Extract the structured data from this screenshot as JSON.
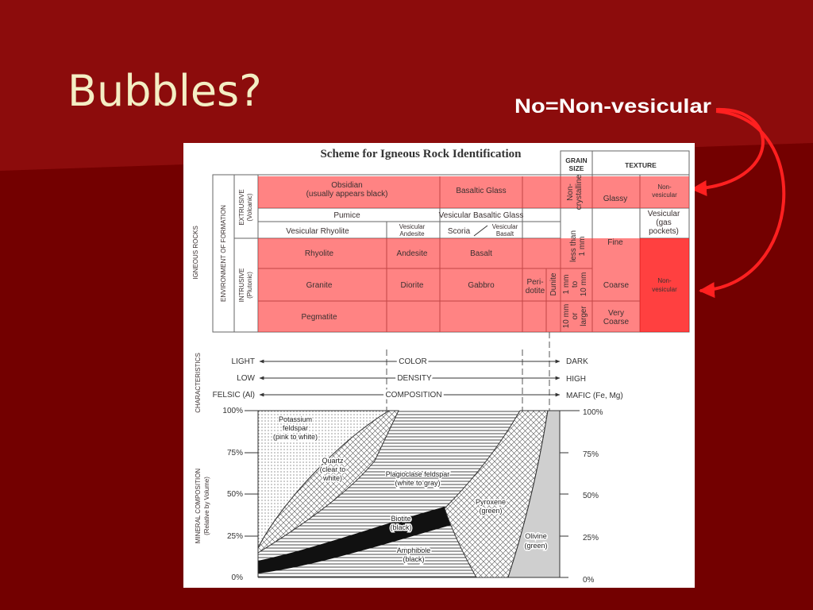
{
  "slide": {
    "title": "Bubbles?",
    "note": "No=Non-vesicular"
  },
  "scheme": {
    "title": "Scheme for Igneous Rock Identification",
    "header": {
      "grain_size": [
        "GRAIN",
        "SIZE"
      ],
      "texture": "TEXTURE"
    },
    "side": {
      "igneous_rocks": "IGNEOUS ROCKS",
      "environment": "ENVIRONMENT OF FORMATION",
      "extrusive": [
        "EXTRUSIVE",
        "(Volcanic)"
      ],
      "intrusive": [
        "INTRUSIVE",
        "(Plutonic)"
      ]
    },
    "extrusive": {
      "obsidian": [
        "Obsidian",
        "(usually appears black)"
      ],
      "basaltic_glass": "Basaltic Glass",
      "pumice": "Pumice",
      "vesicular_basaltic_glass": "Vesicular Basaltic Glass",
      "vesicular_rhyolite": "Vesicular Rhyolite",
      "vesicular_andesite": [
        "Vesicular",
        "Andesite"
      ],
      "scoria": "Scoria",
      "vesicular_basalt": [
        "Vesicular",
        "Basalt"
      ],
      "rhyolite": "Rhyolite",
      "andesite": "Andesite",
      "basalt": "Basalt"
    },
    "intrusive": {
      "granite": "Granite",
      "diorite": "Diorite",
      "gabbro": "Gabbro",
      "peridotite": [
        "Peri-",
        "dotite"
      ],
      "dunite": "Dunite",
      "pegmatite": "Pegmatite"
    },
    "grain_size": {
      "non_crystalline": [
        "Non-",
        "crystalline"
      ],
      "fine": [
        "less than",
        "1 mm"
      ],
      "coarse": [
        "1 mm",
        "to",
        "10 mm"
      ],
      "very_coarse": [
        "10 mm",
        "or",
        "larger"
      ]
    },
    "texture": {
      "glassy": "Glassy",
      "glassy_vesicularity": [
        "Non-",
        "vesicular"
      ],
      "vesicular": [
        "Vesicular",
        "(gas",
        "pockets)"
      ],
      "fine": "Fine",
      "coarse": "Coarse",
      "very_coarse": [
        "Very",
        "Coarse"
      ],
      "crystalline_vesicularity": [
        "Non-",
        "vesicular"
      ]
    },
    "characteristics": {
      "label": "CHARACTERISTICS",
      "rows": [
        [
          "LIGHT",
          "COLOR",
          "DARK"
        ],
        [
          "LOW",
          "DENSITY",
          "HIGH"
        ],
        [
          "FELSIC (Al)",
          "COMPOSITION",
          "MAFIC (Fe, Mg)"
        ]
      ]
    },
    "mineral_composition": {
      "label": [
        "MINERAL COMPOSITION",
        "(Relative by Volume)"
      ],
      "scale": [
        "100%",
        "75%",
        "50%",
        "25%",
        "0%"
      ],
      "minerals": {
        "potassium_feldspar": [
          "Potassium",
          "feldspar",
          "(pink to white)"
        ],
        "quartz": [
          "Quartz",
          "(clear to",
          "white)"
        ],
        "plagioclase": [
          "Plagioclase feldspar",
          "(white to gray)"
        ],
        "biotite": [
          "Biotite",
          "(black)"
        ],
        "amphibole": [
          "Amphibole",
          "(black)"
        ],
        "pyroxene": [
          "Pyroxene",
          "(green)"
        ],
        "olivine": [
          "Olivine",
          "(green)"
        ]
      }
    }
  }
}
